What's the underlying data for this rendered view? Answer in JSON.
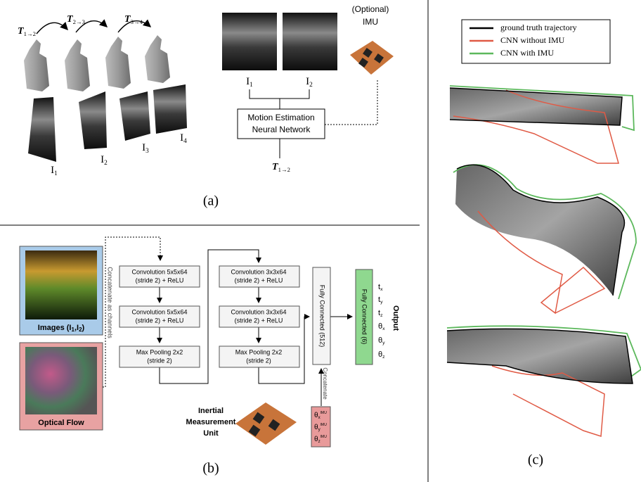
{
  "panel_a": {
    "transforms": [
      {
        "symbol": "T",
        "sub": "1→2"
      },
      {
        "symbol": "T",
        "sub": "2→3"
      },
      {
        "symbol": "T",
        "sub": "3→4"
      }
    ],
    "slices": [
      {
        "symbol": "I",
        "sub": "1"
      },
      {
        "symbol": "I",
        "sub": "2"
      },
      {
        "symbol": "I",
        "sub": "3"
      },
      {
        "symbol": "I",
        "sub": "4"
      }
    ],
    "network_inputs": [
      {
        "symbol": "I",
        "sub": "1"
      },
      {
        "symbol": "I",
        "sub": "2"
      }
    ],
    "imu_label": [
      "(Optional)",
      "IMU"
    ],
    "network": [
      "Motion Estimation",
      "Neural Network"
    ],
    "output": {
      "symbol": "T",
      "sub": "1→2"
    },
    "caption": "(a)"
  },
  "panel_b": {
    "images_label": [
      {
        "text": "Images (I"
      },
      {
        "sub": "1"
      },
      {
        "text": ",I"
      },
      {
        "sub": "2"
      },
      {
        "text": ")"
      }
    ],
    "optical_flow": "Optical Flow",
    "concat_channels": "Concatenate as channels",
    "column1": [
      [
        "Convolution 5x5x64",
        "(stride 2) + ReLU"
      ],
      [
        "Convolution 5x5x64",
        "(stride 2) + ReLU"
      ],
      [
        "Max Pooling 2x2",
        "(stride 2)"
      ]
    ],
    "column2": [
      [
        "Convolution 3x3x64",
        "(stride 2) + ReLU"
      ],
      [
        "Convolution 3x3x64",
        "(stride 2) + ReLU"
      ],
      [
        "Max Pooling 2x2",
        "(stride 2)"
      ]
    ],
    "fc1": "Fully Connected (512)",
    "fc2": "Fully Connected (6)",
    "concatenate": "Concatenate",
    "imu_name": [
      "Inertial",
      "Measurement",
      "Unit"
    ],
    "imu_inputs": [
      {
        "symbol": "θ",
        "sub": "x",
        "sup": "IMU"
      },
      {
        "symbol": "θ",
        "sub": "y",
        "sup": "IMU"
      },
      {
        "symbol": "θ",
        "sub": "z",
        "sup": "IMU"
      }
    ],
    "outputs": [
      {
        "symbol": "t",
        "sub": "x"
      },
      {
        "symbol": "t",
        "sub": "y"
      },
      {
        "symbol": "t",
        "sub": "z"
      },
      {
        "symbol": "θ",
        "sub": "x"
      },
      {
        "symbol": "θ",
        "sub": "y"
      },
      {
        "symbol": "θ",
        "sub": "z"
      }
    ],
    "output_label": "Output",
    "caption": "(b)"
  },
  "panel_c": {
    "legend": [
      {
        "name": "ground truth trajectory",
        "color": "#000000"
      },
      {
        "name": "CNN without IMU",
        "color": "#e05a45"
      },
      {
        "name": "CNN with IMU",
        "color": "#5cb85c"
      }
    ],
    "caption": "(c)"
  }
}
